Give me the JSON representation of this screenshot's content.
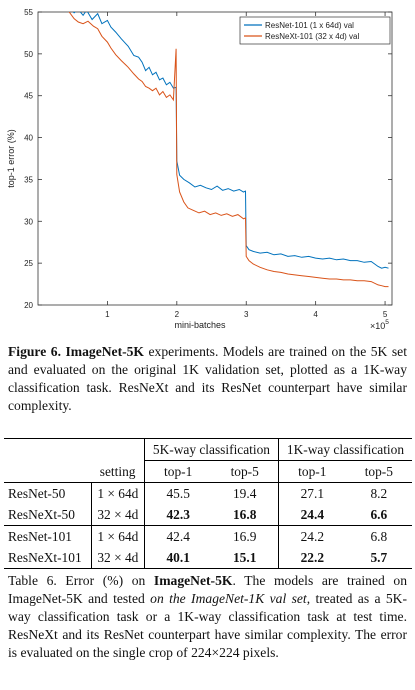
{
  "chart_data": {
    "type": "line",
    "title": "",
    "xlabel": "mini-batches",
    "ylabel": "top-1 error (%)",
    "x_scale_label": "×10",
    "x_scale_exp": "5",
    "xlim": [
      0,
      5.1
    ],
    "ylim": [
      20,
      55
    ],
    "xticks": [
      1,
      2,
      3,
      4,
      5
    ],
    "yticks": [
      20,
      25,
      30,
      35,
      40,
      45,
      50,
      55
    ],
    "grid": false,
    "legend_position": "top-right",
    "series": [
      {
        "name": "ResNet-101 (1 x 64d) val",
        "color": "#0072bd",
        "points": [
          [
            0.38,
            56.8
          ],
          [
            0.45,
            55.6
          ],
          [
            0.52,
            54.9
          ],
          [
            0.58,
            55.3
          ],
          [
            0.65,
            54.6
          ],
          [
            0.7,
            55.2
          ],
          [
            0.78,
            54.1
          ],
          [
            0.86,
            54.8
          ],
          [
            0.92,
            53.6
          ],
          [
            1.0,
            54.0
          ],
          [
            1.05,
            53.2
          ],
          [
            1.12,
            52.6
          ],
          [
            1.2,
            51.8
          ],
          [
            1.3,
            50.9
          ],
          [
            1.38,
            49.8
          ],
          [
            1.45,
            49.6
          ],
          [
            1.5,
            49.0
          ],
          [
            1.55,
            48.0
          ],
          [
            1.6,
            48.4
          ],
          [
            1.65,
            47.5
          ],
          [
            1.7,
            47.8
          ],
          [
            1.75,
            46.9
          ],
          [
            1.8,
            47.1
          ],
          [
            1.85,
            46.3
          ],
          [
            1.9,
            46.6
          ],
          [
            1.95,
            45.9
          ],
          [
            1.99,
            46.0
          ],
          [
            2.0,
            37.2
          ],
          [
            2.04,
            35.5
          ],
          [
            2.1,
            35.0
          ],
          [
            2.18,
            34.6
          ],
          [
            2.26,
            34.1
          ],
          [
            2.34,
            34.3
          ],
          [
            2.42,
            34.0
          ],
          [
            2.5,
            33.8
          ],
          [
            2.58,
            34.2
          ],
          [
            2.66,
            33.7
          ],
          [
            2.74,
            33.9
          ],
          [
            2.82,
            33.6
          ],
          [
            2.9,
            33.8
          ],
          [
            2.96,
            33.5
          ],
          [
            2.99,
            33.6
          ],
          [
            3.0,
            27.1
          ],
          [
            3.04,
            26.6
          ],
          [
            3.1,
            26.4
          ],
          [
            3.2,
            26.2
          ],
          [
            3.3,
            26.3
          ],
          [
            3.4,
            26.0
          ],
          [
            3.5,
            26.1
          ],
          [
            3.6,
            25.8
          ],
          [
            3.7,
            25.9
          ],
          [
            3.8,
            25.7
          ],
          [
            3.9,
            25.8
          ],
          [
            4.0,
            25.6
          ],
          [
            4.1,
            25.5
          ],
          [
            4.2,
            25.6
          ],
          [
            4.3,
            25.4
          ],
          [
            4.4,
            25.5
          ],
          [
            4.5,
            25.3
          ],
          [
            4.6,
            25.3
          ],
          [
            4.7,
            25.1
          ],
          [
            4.8,
            25.2
          ],
          [
            4.9,
            24.6
          ],
          [
            4.95,
            24.4
          ],
          [
            5.0,
            24.5
          ],
          [
            5.05,
            24.4
          ]
        ]
      },
      {
        "name": "ResNeXt-101 (32 x 4d) val",
        "color": "#d95319",
        "points": [
          [
            0.38,
            56.5
          ],
          [
            0.45,
            55.0
          ],
          [
            0.52,
            54.2
          ],
          [
            0.58,
            53.8
          ],
          [
            0.65,
            53.6
          ],
          [
            0.72,
            53.9
          ],
          [
            0.8,
            53.3
          ],
          [
            0.86,
            53.0
          ],
          [
            0.92,
            52.1
          ],
          [
            1.0,
            51.4
          ],
          [
            1.05,
            50.7
          ],
          [
            1.12,
            49.9
          ],
          [
            1.2,
            49.2
          ],
          [
            1.3,
            48.4
          ],
          [
            1.38,
            47.6
          ],
          [
            1.45,
            47.0
          ],
          [
            1.5,
            46.7
          ],
          [
            1.55,
            46.1
          ],
          [
            1.6,
            45.9
          ],
          [
            1.65,
            45.6
          ],
          [
            1.7,
            45.9
          ],
          [
            1.75,
            45.1
          ],
          [
            1.8,
            45.5
          ],
          [
            1.85,
            44.8
          ],
          [
            1.9,
            45.1
          ],
          [
            1.95,
            44.5
          ],
          [
            1.99,
            50.6
          ],
          [
            2.0,
            35.6
          ],
          [
            2.04,
            33.5
          ],
          [
            2.1,
            32.3
          ],
          [
            2.16,
            31.6
          ],
          [
            2.24,
            31.3
          ],
          [
            2.32,
            31.0
          ],
          [
            2.4,
            31.2
          ],
          [
            2.48,
            30.8
          ],
          [
            2.56,
            31.0
          ],
          [
            2.64,
            30.7
          ],
          [
            2.72,
            30.9
          ],
          [
            2.8,
            30.6
          ],
          [
            2.88,
            30.8
          ],
          [
            2.96,
            30.3
          ],
          [
            2.99,
            30.4
          ],
          [
            3.0,
            25.8
          ],
          [
            3.04,
            25.3
          ],
          [
            3.1,
            24.9
          ],
          [
            3.2,
            24.5
          ],
          [
            3.3,
            24.2
          ],
          [
            3.4,
            24.0
          ],
          [
            3.5,
            23.9
          ],
          [
            3.6,
            23.7
          ],
          [
            3.7,
            23.6
          ],
          [
            3.8,
            23.5
          ],
          [
            3.9,
            23.4
          ],
          [
            4.0,
            23.3
          ],
          [
            4.1,
            23.2
          ],
          [
            4.2,
            23.1
          ],
          [
            4.3,
            23.1
          ],
          [
            4.4,
            23.0
          ],
          [
            4.5,
            23.0
          ],
          [
            4.6,
            22.9
          ],
          [
            4.7,
            22.9
          ],
          [
            4.8,
            22.8
          ],
          [
            4.9,
            22.4
          ],
          [
            4.95,
            22.3
          ],
          [
            5.0,
            22.2
          ],
          [
            5.05,
            22.2
          ]
        ]
      }
    ]
  },
  "figure_caption": {
    "label": "Figure 6.",
    "emph": "ImageNet-5K",
    "text": " experiments. Models are trained on the 5K set and evaluated on the original 1K validation set, plotted as a 1K-way classification task. ResNeXt and its ResNet counterpart have similar complexity."
  },
  "table": {
    "group_headers": [
      "5K-way classification",
      "1K-way classification"
    ],
    "col_headers": [
      "setting",
      "top-1",
      "top-5",
      "top-1",
      "top-5"
    ],
    "rows": [
      {
        "model": "ResNet-50",
        "setting": "1 × 64d",
        "v": [
          "45.5",
          "19.4",
          "27.1",
          "8.2"
        ],
        "bold": false
      },
      {
        "model": "ResNeXt-50",
        "setting": "32 × 4d",
        "v": [
          "42.3",
          "16.8",
          "24.4",
          "6.6"
        ],
        "bold": true
      },
      {
        "model": "ResNet-101",
        "setting": "1 × 64d",
        "v": [
          "42.4",
          "16.9",
          "24.2",
          "6.8"
        ],
        "bold": false
      },
      {
        "model": "ResNeXt-101",
        "setting": "32 × 4d",
        "v": [
          "40.1",
          "15.1",
          "22.2",
          "5.7"
        ],
        "bold": true
      }
    ]
  },
  "table_caption": {
    "label": "Table 6.",
    "t1": " Error (%) on ",
    "emph": "ImageNet-5K",
    "t2": ". The models are trained on ImageNet-5K and tested ",
    "ital": "on the ImageNet-1K val set",
    "t3": ", treated as a 5K-way classification task or a 1K-way classification task at test time. ResNeXt and its ResNet counterpart have similar complexity. The error is evaluated on the single crop of 224×224 pixels."
  }
}
